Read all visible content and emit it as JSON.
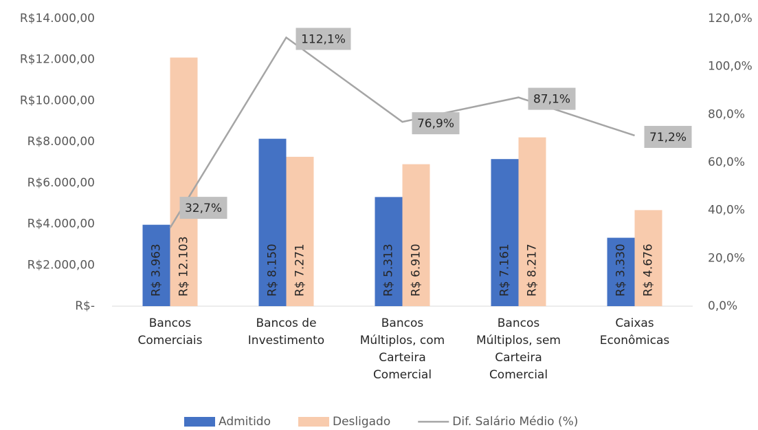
{
  "chart_data": {
    "type": "bar-line",
    "categories": [
      "Bancos Comerciais",
      "Bancos de Investimento",
      "Bancos Múltiplos, com Carteira Comercial",
      "Bancos Múltiplos, sem Carteira Comercial",
      "Caixas Econômicas"
    ],
    "series": [
      {
        "name": "Admitido",
        "type": "bar",
        "color": "#4472c4",
        "values": [
          3963,
          8150,
          5313,
          7161,
          3330
        ],
        "value_labels": [
          "R$ 3.963",
          "R$ 8.150",
          "R$ 5.313",
          "R$ 7.161",
          "R$ 3.330"
        ]
      },
      {
        "name": "Desligado",
        "type": "bar",
        "color": "#f8cbad",
        "values": [
          12103,
          7271,
          6910,
          8217,
          4676
        ],
        "value_labels": [
          "R$ 12.103",
          "R$ 7.271",
          "R$ 6.910",
          "R$ 8.217",
          "R$ 4.676"
        ]
      },
      {
        "name": "Dif. Salário Médio (%)",
        "type": "line",
        "axis": "y2",
        "color": "#a5a5a5",
        "values": [
          32.7,
          112.1,
          76.9,
          87.1,
          71.2
        ],
        "value_labels": [
          "32,7%",
          "112,1%",
          "76,9%",
          "87,1%",
          "71,2%"
        ]
      }
    ],
    "ylim": [
      0,
      14000
    ],
    "yticks": [
      {
        "value": 0,
        "label": "R$-"
      },
      {
        "value": 2000,
        "label": "R$2.000,00"
      },
      {
        "value": 4000,
        "label": "R$4.000,00"
      },
      {
        "value": 6000,
        "label": "R$6.000,00"
      },
      {
        "value": 8000,
        "label": "R$8.000,00"
      },
      {
        "value": 10000,
        "label": "R$10.000,00"
      },
      {
        "value": 12000,
        "label": "R$12.000,00"
      },
      {
        "value": 14000,
        "label": "R$14.000,00"
      }
    ],
    "y2lim": [
      0,
      120
    ],
    "y2ticks": [
      {
        "value": 0,
        "label": "0,0%"
      },
      {
        "value": 20,
        "label": "20,0%"
      },
      {
        "value": 40,
        "label": "40,0%"
      },
      {
        "value": 60,
        "label": "60,0%"
      },
      {
        "value": 80,
        "label": "80,0%"
      },
      {
        "value": 100,
        "label": "100,0%"
      },
      {
        "value": 120,
        "label": "120,0%"
      }
    ],
    "legend": "bottom"
  }
}
